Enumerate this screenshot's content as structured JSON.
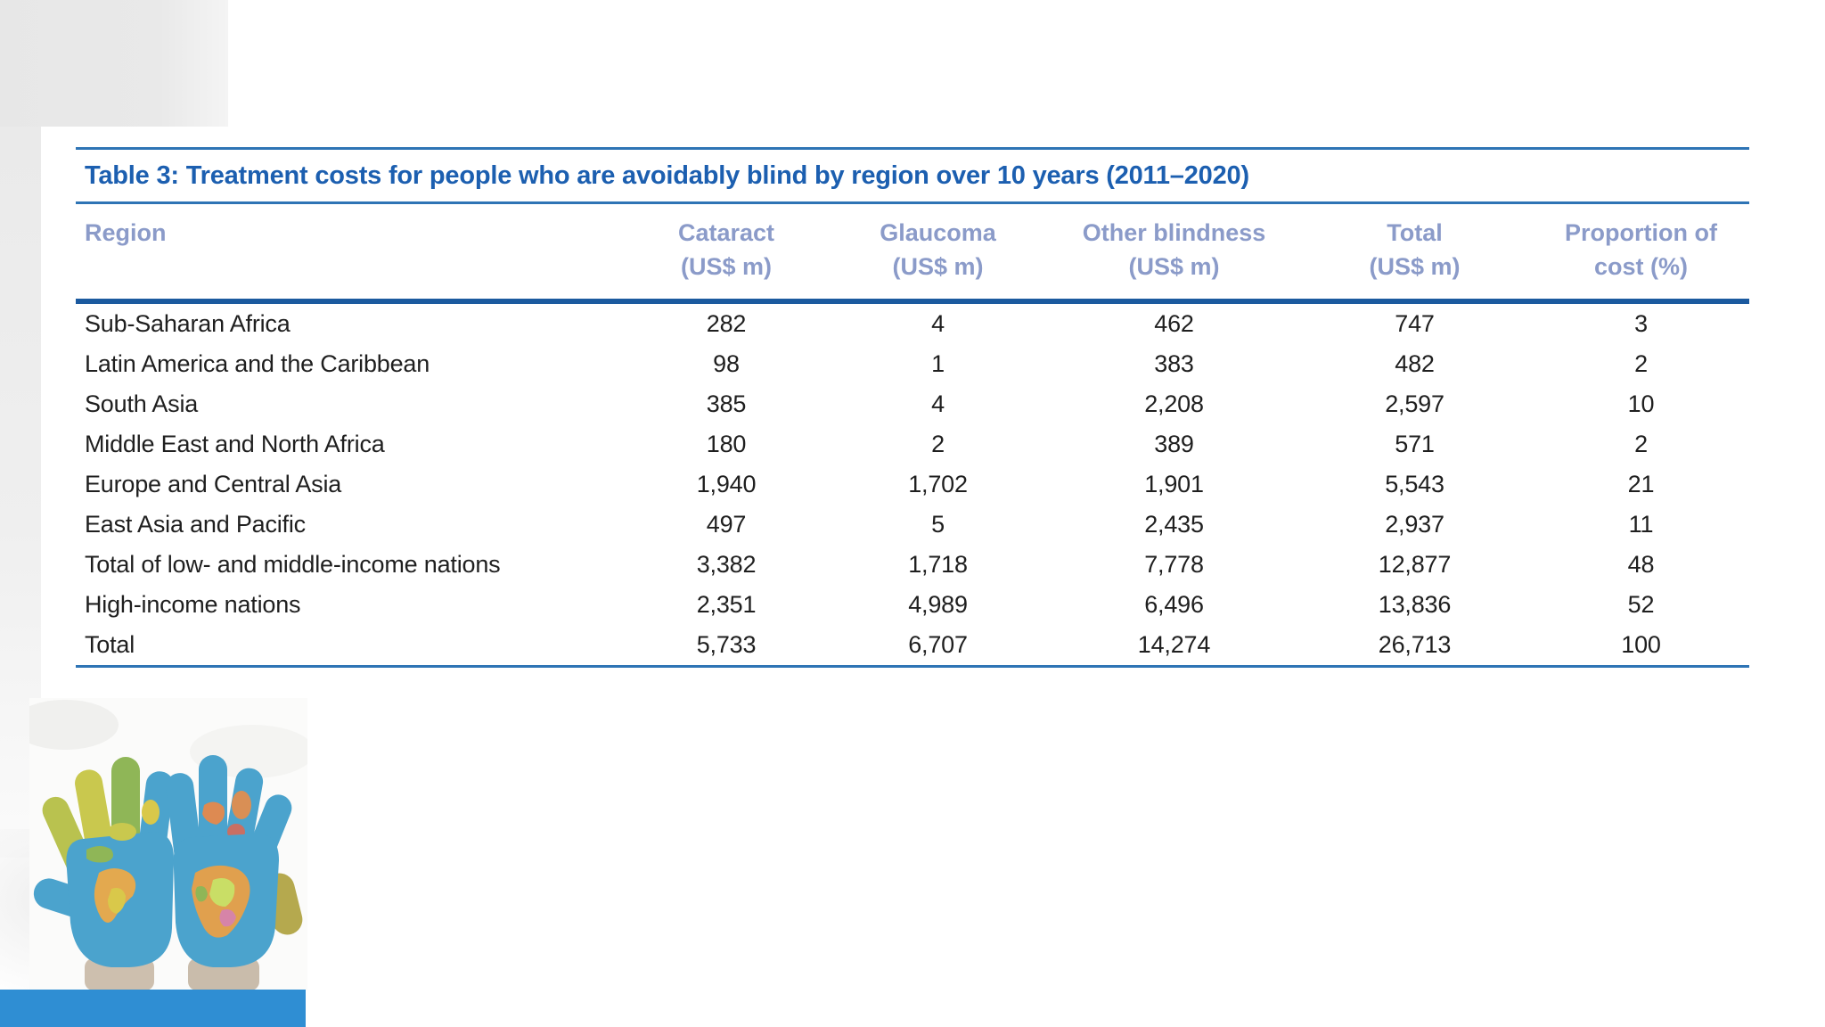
{
  "table": {
    "title": "Table 3: Treatment costs for people who are avoidably blind by region over 10 years (2011–2020)",
    "columns": [
      {
        "label": "Region",
        "sub": ""
      },
      {
        "label": "Cataract",
        "sub": "(US$ m)"
      },
      {
        "label": "Glaucoma",
        "sub": "(US$ m)"
      },
      {
        "label": "Other blindness",
        "sub": "(US$ m)"
      },
      {
        "label": "Total",
        "sub": "(US$ m)"
      },
      {
        "label": "Proportion of",
        "sub": "cost (%)"
      }
    ],
    "rows": [
      [
        "Sub-Saharan Africa",
        "282",
        "4",
        "462",
        "747",
        "3"
      ],
      [
        "Latin America and the Caribbean",
        "98",
        "1",
        "383",
        "482",
        "2"
      ],
      [
        "South Asia",
        "385",
        "4",
        "2,208",
        "2,597",
        "10"
      ],
      [
        "Middle East and North Africa",
        "180",
        "2",
        "389",
        "571",
        "2"
      ],
      [
        "Europe and Central Asia",
        "1,940",
        "1,702",
        "1,901",
        "5,543",
        "21"
      ],
      [
        "East Asia and Pacific",
        "497",
        "5",
        "2,435",
        "2,937",
        "11"
      ],
      [
        "Total of low- and middle-income nations",
        "3,382",
        "1,718",
        "7,778",
        "12,877",
        "48"
      ],
      [
        "High-income nations",
        "2,351",
        "4,989",
        "6,496",
        "13,836",
        "52"
      ],
      [
        "Total",
        "5,733",
        "6,707",
        "14,274",
        "26,713",
        "100"
      ]
    ]
  },
  "colors": {
    "title_blue": "#1c5fb0",
    "header_blue": "#8b9bc9",
    "rule_blue": "#2e74b5",
    "rule_dark_blue": "#1b5a9f",
    "body_text": "#1f1f1f",
    "bottom_bar_blue": "#2f8ed3"
  },
  "decor": {
    "image": "hands-painted-as-world-map"
  }
}
